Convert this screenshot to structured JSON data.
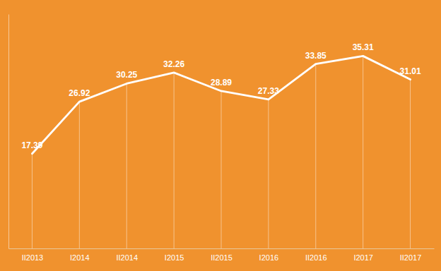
{
  "chart_data": {
    "type": "line",
    "categories": [
      "II2013",
      "I2014",
      "II2014",
      "I2015",
      "II2015",
      "I2016",
      "II2016",
      "I2017",
      "II2017"
    ],
    "values": [
      17.39,
      26.92,
      30.25,
      32.26,
      28.89,
      27.33,
      33.85,
      35.31,
      31.01
    ],
    "color": "#FFFFFF",
    "ylim": [
      0,
      43
    ],
    "grid": false,
    "data_labels": true,
    "tick_labels": "x"
  }
}
